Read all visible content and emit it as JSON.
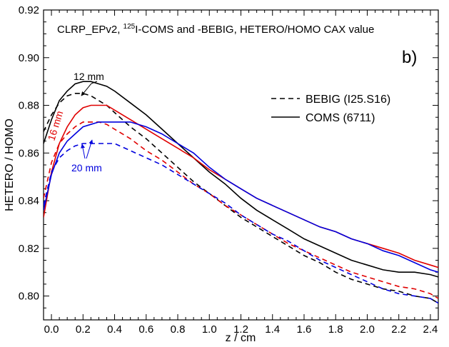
{
  "chart_data": {
    "type": "line",
    "title_parts": [
      "CLRP_EPv2, ",
      "125",
      "I-COMS and -BEBIG, HETERO/HOMO CAX value"
    ],
    "panel_label": "b)",
    "xlabel": "z / cm",
    "ylabel": "HETERO / HOMO",
    "xlim": [
      -0.05,
      2.45
    ],
    "ylim": [
      0.79,
      0.92
    ],
    "xticks": [
      "0.0",
      "0.2",
      "0.4",
      "0.6",
      "0.8",
      "1.0",
      "1.2",
      "1.4",
      "1.6",
      "1.8",
      "2.0",
      "2.2",
      "2.4"
    ],
    "yticks": [
      "0.80",
      "0.82",
      "0.84",
      "0.86",
      "0.88",
      "0.90",
      "0.92"
    ],
    "legend": [
      {
        "label": "BEBIG (I25.S16)",
        "style": "dashed"
      },
      {
        "label": "COMS (6711)",
        "style": "solid"
      }
    ],
    "annotations": [
      {
        "text": "12 mm",
        "color": "#000000"
      },
      {
        "text": "16 mm",
        "color": "#e00000"
      },
      {
        "text": "20 mm",
        "color": "#0000dd"
      }
    ],
    "series": [
      {
        "color": "#000000",
        "style": "solid",
        "x": [
          -0.05,
          0.0,
          0.05,
          0.1,
          0.15,
          0.2,
          0.25,
          0.3,
          0.35,
          0.4,
          0.5,
          0.6,
          0.7,
          0.8,
          0.9,
          1.0,
          1.1,
          1.2,
          1.3,
          1.4,
          1.5,
          1.6,
          1.7,
          1.8,
          1.9,
          2.0,
          2.1,
          2.2,
          2.3,
          2.4,
          2.45
        ],
        "y": [
          0.864,
          0.874,
          0.882,
          0.886,
          0.889,
          0.89,
          0.89,
          0.889,
          0.888,
          0.886,
          0.881,
          0.876,
          0.87,
          0.864,
          0.858,
          0.852,
          0.847,
          0.841,
          0.836,
          0.832,
          0.828,
          0.824,
          0.821,
          0.818,
          0.815,
          0.813,
          0.811,
          0.81,
          0.81,
          0.809,
          0.808
        ]
      },
      {
        "color": "#000000",
        "style": "dashed",
        "x": [
          -0.05,
          0.0,
          0.05,
          0.1,
          0.15,
          0.2,
          0.25,
          0.3,
          0.35,
          0.4,
          0.5,
          0.6,
          0.7,
          0.8,
          0.9,
          1.0,
          1.1,
          1.2,
          1.3,
          1.4,
          1.5,
          1.6,
          1.7,
          1.8,
          1.9,
          2.0,
          2.1,
          2.2,
          2.3,
          2.4,
          2.45
        ],
        "y": [
          0.869,
          0.876,
          0.881,
          0.884,
          0.885,
          0.885,
          0.884,
          0.882,
          0.88,
          0.877,
          0.871,
          0.866,
          0.86,
          0.854,
          0.848,
          0.843,
          0.838,
          0.833,
          0.829,
          0.825,
          0.821,
          0.817,
          0.814,
          0.81,
          0.807,
          0.805,
          0.803,
          0.802,
          0.8,
          0.799,
          0.797
        ]
      },
      {
        "color": "#e00000",
        "style": "solid",
        "x": [
          -0.05,
          0.0,
          0.05,
          0.1,
          0.15,
          0.2,
          0.25,
          0.3,
          0.35,
          0.4,
          0.5,
          0.6,
          0.7,
          0.8,
          0.9,
          1.0,
          1.1,
          1.2,
          1.3,
          1.4,
          1.5,
          1.6,
          1.7,
          1.8,
          1.9,
          2.0,
          2.1,
          2.2,
          2.3,
          2.4,
          2.45
        ],
        "y": [
          0.833,
          0.852,
          0.864,
          0.871,
          0.876,
          0.879,
          0.88,
          0.88,
          0.88,
          0.878,
          0.874,
          0.87,
          0.866,
          0.862,
          0.858,
          0.853,
          0.849,
          0.845,
          0.841,
          0.838,
          0.835,
          0.832,
          0.829,
          0.827,
          0.824,
          0.822,
          0.82,
          0.818,
          0.815,
          0.813,
          0.812
        ]
      },
      {
        "color": "#e00000",
        "style": "dashed",
        "x": [
          -0.05,
          0.0,
          0.05,
          0.1,
          0.15,
          0.2,
          0.25,
          0.3,
          0.35,
          0.4,
          0.5,
          0.6,
          0.7,
          0.8,
          0.9,
          1.0,
          1.1,
          1.2,
          1.3,
          1.4,
          1.5,
          1.6,
          1.7,
          1.8,
          1.9,
          2.0,
          2.1,
          2.2,
          2.3,
          2.4,
          2.45
        ],
        "y": [
          0.841,
          0.856,
          0.864,
          0.868,
          0.871,
          0.873,
          0.873,
          0.873,
          0.872,
          0.87,
          0.866,
          0.861,
          0.857,
          0.852,
          0.847,
          0.843,
          0.838,
          0.834,
          0.83,
          0.826,
          0.822,
          0.819,
          0.816,
          0.813,
          0.81,
          0.808,
          0.806,
          0.804,
          0.803,
          0.801,
          0.799
        ]
      },
      {
        "color": "#0000dd",
        "style": "solid",
        "x": [
          -0.05,
          0.0,
          0.05,
          0.1,
          0.15,
          0.2,
          0.25,
          0.3,
          0.35,
          0.4,
          0.5,
          0.6,
          0.7,
          0.8,
          0.9,
          1.0,
          1.1,
          1.2,
          1.3,
          1.4,
          1.5,
          1.6,
          1.7,
          1.8,
          1.9,
          2.0,
          2.1,
          2.2,
          2.3,
          2.4,
          2.45
        ],
        "y": [
          0.836,
          0.851,
          0.86,
          0.865,
          0.868,
          0.871,
          0.872,
          0.873,
          0.873,
          0.873,
          0.873,
          0.871,
          0.868,
          0.864,
          0.86,
          0.854,
          0.849,
          0.845,
          0.841,
          0.838,
          0.835,
          0.832,
          0.829,
          0.827,
          0.824,
          0.822,
          0.819,
          0.817,
          0.814,
          0.811,
          0.81
        ]
      },
      {
        "color": "#0000dd",
        "style": "dashed",
        "x": [
          -0.05,
          0.0,
          0.05,
          0.1,
          0.15,
          0.2,
          0.25,
          0.3,
          0.35,
          0.4,
          0.5,
          0.6,
          0.7,
          0.8,
          0.9,
          1.0,
          1.1,
          1.2,
          1.3,
          1.4,
          1.5,
          1.6,
          1.7,
          1.8,
          1.9,
          2.0,
          2.1,
          2.2,
          2.3,
          2.4,
          2.45
        ],
        "y": [
          0.838,
          0.852,
          0.858,
          0.861,
          0.863,
          0.864,
          0.864,
          0.864,
          0.864,
          0.864,
          0.861,
          0.858,
          0.855,
          0.851,
          0.847,
          0.843,
          0.839,
          0.834,
          0.83,
          0.826,
          0.823,
          0.819,
          0.815,
          0.812,
          0.809,
          0.806,
          0.803,
          0.801,
          0.8,
          0.799,
          0.797
        ]
      }
    ]
  }
}
